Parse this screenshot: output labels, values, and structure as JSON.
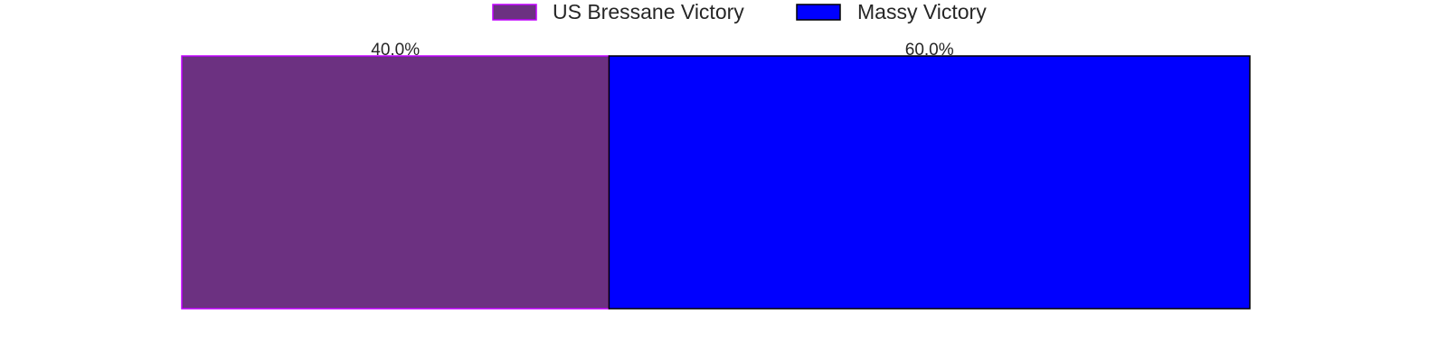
{
  "chart_data": {
    "type": "bar",
    "orientation": "horizontal-stacked",
    "series": [
      {
        "name": "US Bressane Victory",
        "value": 40.0,
        "label": "40.0%",
        "color": "#6c3181",
        "edge_color": "#c000ff"
      },
      {
        "name": "Massy Victory",
        "value": 60.0,
        "label": "60.0%",
        "color": "#0000ff",
        "edge_color": "#000000"
      }
    ],
    "legend_position": "top-center",
    "grid": false,
    "axes_visible": false,
    "xlim": [
      0,
      100
    ]
  }
}
